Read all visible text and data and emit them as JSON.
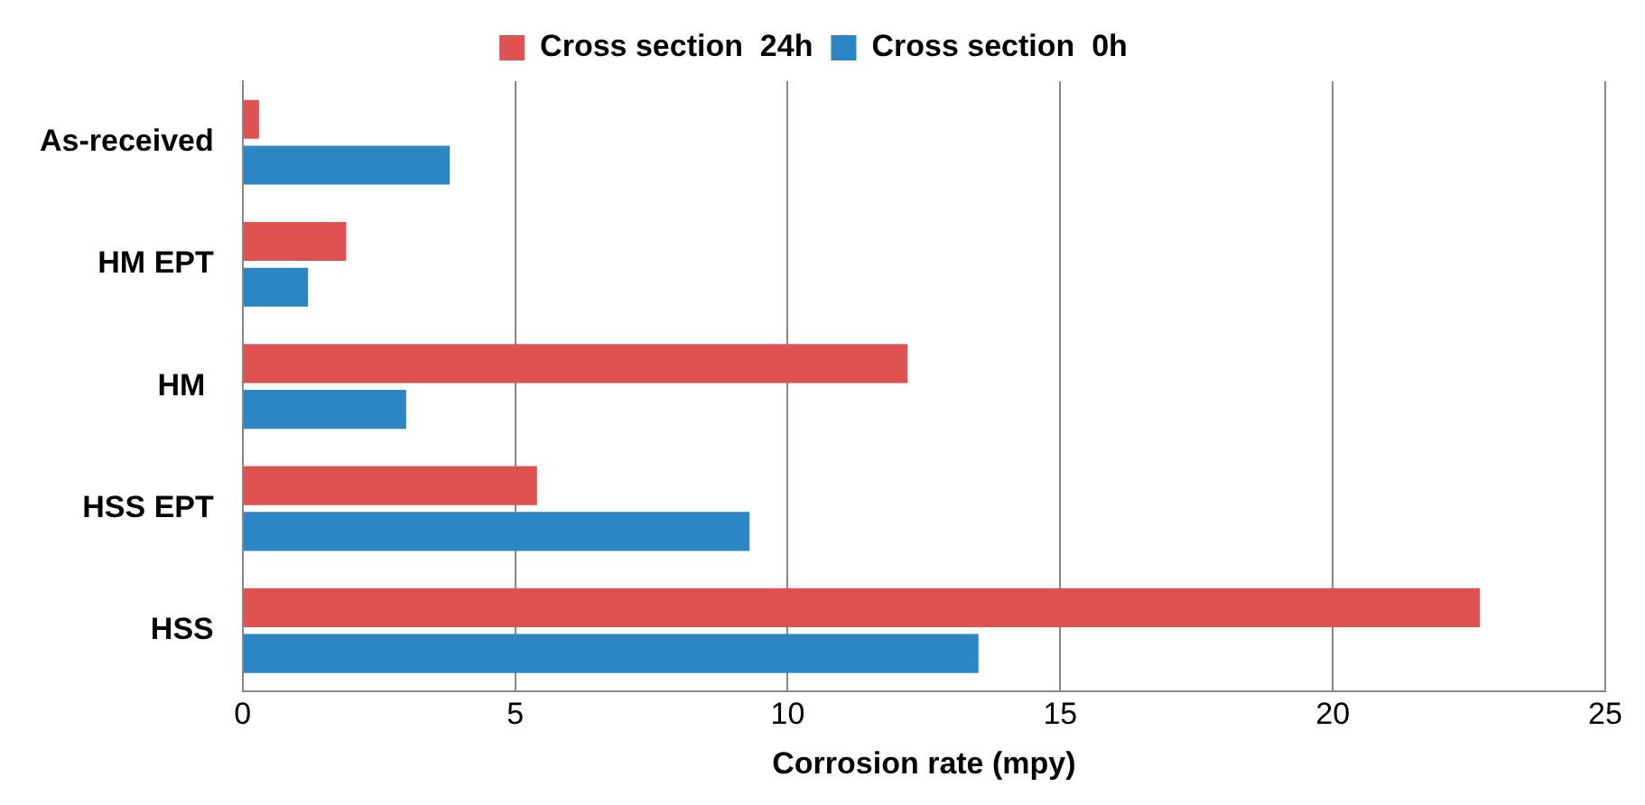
{
  "chart_data": {
    "type": "bar",
    "orientation": "horizontal",
    "xlabel": "Corrosion rate (mpy)",
    "categories": [
      "As-received",
      "HM EPT",
      "HM ",
      "HSS EPT",
      "HSS"
    ],
    "series": [
      {
        "name": "Cross section  24h",
        "color": "#e05252",
        "values": [
          0.3,
          1.9,
          12.2,
          5.4,
          22.7
        ]
      },
      {
        "name": "Cross section  0h",
        "color": "#2c86c6",
        "values": [
          3.8,
          1.2,
          3.0,
          9.3,
          13.5
        ]
      }
    ],
    "xlim": [
      0,
      25
    ],
    "xticks": [
      0,
      5,
      10,
      15,
      20,
      25
    ],
    "grid": "x",
    "legend": "top"
  }
}
